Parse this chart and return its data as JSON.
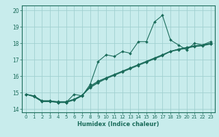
{
  "xlabel": "Humidex (Indice chaleur)",
  "ylabel": "",
  "bg_color": "#c8ecec",
  "grid_color": "#a0d0d0",
  "line_color": "#1a6b5a",
  "xlim": [
    -0.5,
    23.5
  ],
  "ylim": [
    13.8,
    20.3
  ],
  "yticks": [
    14,
    15,
    16,
    17,
    18,
    19,
    20
  ],
  "xticks": [
    0,
    1,
    2,
    3,
    4,
    5,
    6,
    7,
    8,
    9,
    10,
    11,
    12,
    13,
    14,
    15,
    16,
    17,
    18,
    19,
    20,
    21,
    22,
    23
  ],
  "lines": [
    {
      "x": [
        0,
        1,
        2,
        3,
        4,
        5,
        6,
        7,
        8,
        9,
        10,
        11,
        12,
        13,
        14,
        15,
        16,
        17,
        18,
        19,
        20,
        21,
        22,
        23
      ],
      "y": [
        14.9,
        14.8,
        14.5,
        14.5,
        14.4,
        14.4,
        14.9,
        14.8,
        15.5,
        16.9,
        17.3,
        17.2,
        17.5,
        17.4,
        18.1,
        18.1,
        19.3,
        19.7,
        18.2,
        17.9,
        17.6,
        18.0,
        17.9,
        18.1
      ]
    },
    {
      "x": [
        0,
        1,
        2,
        3,
        4,
        5,
        6,
        7,
        8,
        9,
        10,
        11,
        12,
        13,
        14,
        15,
        16,
        17,
        18,
        19,
        20,
        21,
        22,
        23
      ],
      "y": [
        14.9,
        14.75,
        14.45,
        14.45,
        14.4,
        14.4,
        14.55,
        14.8,
        15.4,
        15.7,
        15.9,
        16.1,
        16.3,
        16.5,
        16.7,
        16.9,
        17.1,
        17.3,
        17.5,
        17.65,
        17.75,
        17.85,
        17.9,
        18.0
      ]
    },
    {
      "x": [
        0,
        1,
        2,
        3,
        4,
        5,
        6,
        7,
        8,
        9,
        10,
        11,
        12,
        13,
        14,
        15,
        16,
        17,
        18,
        19,
        20,
        21,
        22,
        23
      ],
      "y": [
        14.9,
        14.8,
        14.5,
        14.5,
        14.45,
        14.45,
        14.6,
        14.85,
        15.3,
        15.6,
        15.85,
        16.05,
        16.25,
        16.45,
        16.65,
        16.85,
        17.05,
        17.25,
        17.5,
        17.6,
        17.7,
        17.8,
        17.85,
        17.95
      ]
    },
    {
      "x": [
        0,
        1,
        2,
        3,
        4,
        5,
        6,
        7,
        8,
        9,
        10,
        11,
        12,
        13,
        14,
        15,
        16,
        17,
        18,
        19,
        20,
        21,
        22,
        23
      ],
      "y": [
        14.9,
        14.78,
        14.48,
        14.48,
        14.42,
        14.42,
        14.58,
        14.83,
        15.35,
        15.65,
        15.9,
        16.1,
        16.3,
        16.5,
        16.7,
        16.9,
        17.1,
        17.3,
        17.52,
        17.63,
        17.73,
        17.83,
        17.88,
        17.98
      ]
    }
  ]
}
